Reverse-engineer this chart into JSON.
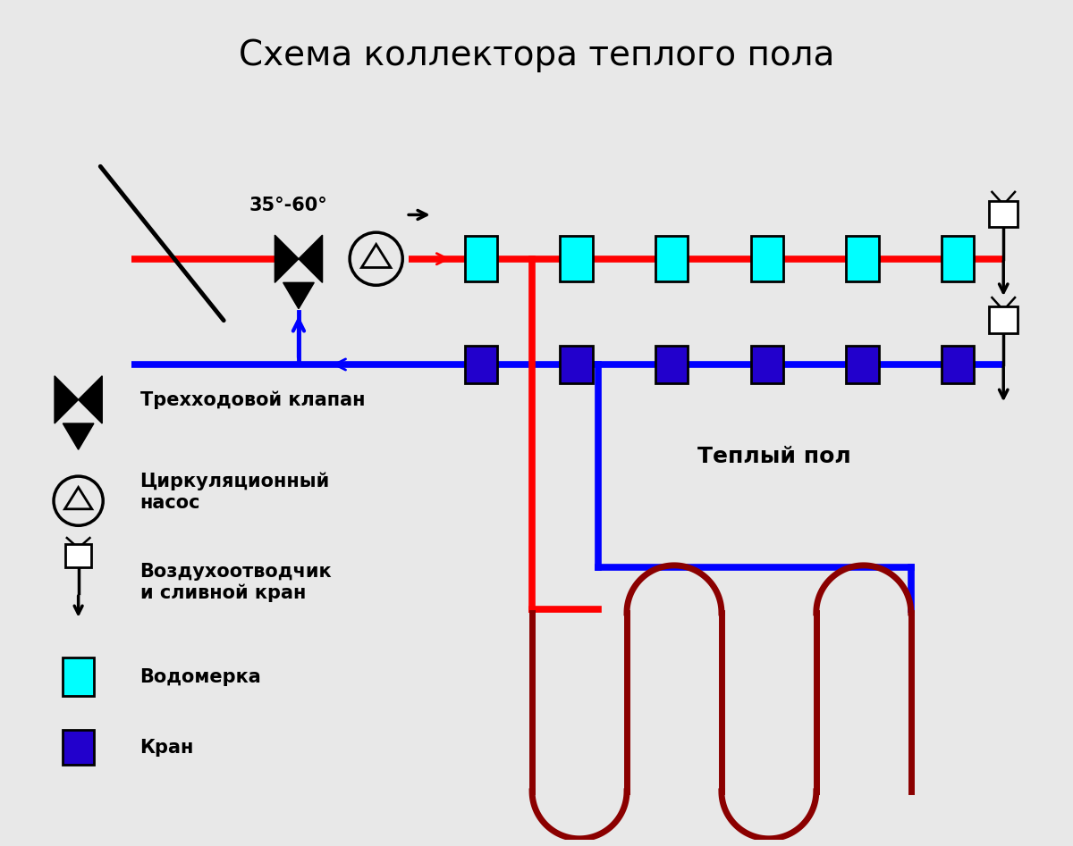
{
  "title": "Схема коллектора теплого пола",
  "bg_color": "#e8e8e8",
  "red_color": "#ff0000",
  "blue_color": "#0000ff",
  "dark_red_color": "#8b0000",
  "cyan_color": "#00ffff",
  "dark_blue_color": "#2200cc",
  "black_color": "#000000",
  "white_color": "#ffffff",
  "temp_label": "35°-60°",
  "floor_label": "Теплый пол",
  "n_flowmeters": 6,
  "n_cranes": 6,
  "legend_texts": [
    "Трехходовой клапан",
    "Циркуляционный\nнасос",
    "Воздухоотводчик\nи сливной кран",
    "Водомерка",
    "Кран"
  ]
}
